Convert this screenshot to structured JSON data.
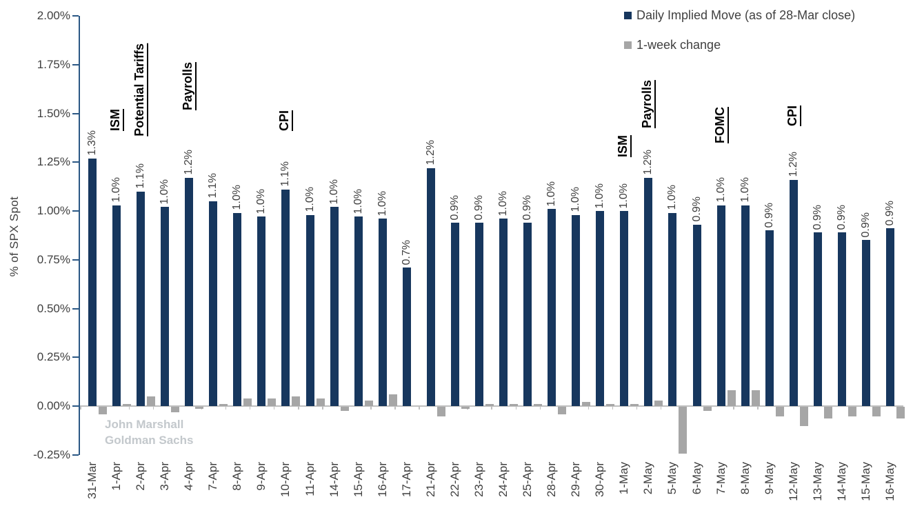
{
  "legend": [
    {
      "label": "Daily Implied Move (as of 28-Mar close)",
      "color": "#17375E"
    },
    {
      "label": "1-week change",
      "color": "#A6A6A6"
    }
  ],
  "watermark": {
    "line1": "John Marshall",
    "line2": "Goldman Sachs",
    "color": "#C3C8CC"
  },
  "chart_data": {
    "type": "bar",
    "title": "",
    "xlabel": "",
    "ylabel": "% of SPX Spot",
    "ylim": [
      -0.25,
      2.0
    ],
    "grid": false,
    "legend_position": "top-right",
    "axis_color": "#2A5784",
    "baseline_color": "#BFBFBF",
    "text_color": "#404040",
    "ytick_values": [
      2.0,
      1.75,
      1.5,
      1.25,
      1.0,
      0.75,
      0.5,
      0.25,
      0.0,
      -0.25
    ],
    "ytick_labels": [
      "2.00%",
      "1.75%",
      "1.50%",
      "1.25%",
      "1.00%",
      "0.75%",
      "0.50%",
      "0.25%",
      "0.00%",
      "-0.25%"
    ],
    "categories": [
      "31-Mar",
      "1-Apr",
      "2-Apr",
      "3-Apr",
      "4-Apr",
      "7-Apr",
      "8-Apr",
      "9-Apr",
      "10-Apr",
      "11-Apr",
      "14-Apr",
      "15-Apr",
      "16-Apr",
      "17-Apr",
      "21-Apr",
      "22-Apr",
      "23-Apr",
      "24-Apr",
      "25-Apr",
      "28-Apr",
      "29-Apr",
      "30-Apr",
      "1-May",
      "2-May",
      "5-May",
      "6-May",
      "7-May",
      "8-May",
      "9-May",
      "12-May",
      "13-May",
      "14-May",
      "15-May",
      "16-May"
    ],
    "series": [
      {
        "name": "Daily Implied Move (as of 28-Mar close)",
        "color": "#17375E",
        "values": [
          1.27,
          1.03,
          1.1,
          1.02,
          1.17,
          1.05,
          0.99,
          0.97,
          1.11,
          0.98,
          1.02,
          0.97,
          0.96,
          0.71,
          1.22,
          0.94,
          0.94,
          0.96,
          0.94,
          1.01,
          0.98,
          1.0,
          1.0,
          1.17,
          0.99,
          0.93,
          1.03,
          1.03,
          0.9,
          1.16,
          0.89,
          0.89,
          0.85,
          0.91
        ],
        "labels": [
          "1.3%",
          "1.0%",
          "1.1%",
          "1.0%",
          "1.2%",
          "1.1%",
          "1.0%",
          "1.0%",
          "1.1%",
          "1.0%",
          "1.0%",
          "1.0%",
          "1.0%",
          "0.7%",
          "1.2%",
          "0.9%",
          "0.9%",
          "1.0%",
          "0.9%",
          "1.0%",
          "1.0%",
          "1.0%",
          "1.0%",
          "1.2%",
          "1.0%",
          "0.9%",
          "1.0%",
          "1.0%",
          "0.9%",
          "1.2%",
          "0.9%",
          "0.9%",
          "0.9%",
          "0.9%"
        ]
      },
      {
        "name": "1-week change",
        "color": "#A6A6A6",
        "values": [
          -0.04,
          0.01,
          0.05,
          -0.03,
          -0.01,
          0.01,
          0.04,
          0.04,
          0.05,
          0.04,
          -0.02,
          0.03,
          0.06,
          0.0,
          -0.05,
          -0.01,
          0.01,
          0.01,
          0.01,
          -0.04,
          0.02,
          0.01,
          0.01,
          0.03,
          -0.24,
          -0.02,
          0.08,
          0.08,
          -0.05,
          -0.1,
          -0.06,
          -0.05,
          -0.05,
          -0.06
        ]
      }
    ],
    "annotations": [
      {
        "text": "ISM",
        "category": "1-Apr",
        "category_index": 1,
        "bottom_y": 190
      },
      {
        "text": "Potential Tariffs",
        "category": "2-Apr",
        "category_index": 2,
        "bottom_y": 198
      },
      {
        "text": "Payrolls",
        "category": "4-Apr",
        "category_index": 4,
        "bottom_y": 160
      },
      {
        "text": "CPI",
        "category": "10-Apr",
        "category_index": 8,
        "bottom_y": 190
      },
      {
        "text": "ISM",
        "category": "1-May",
        "category_index": 22,
        "bottom_y": 228
      },
      {
        "text": "Payrolls",
        "category": "2-May",
        "category_index": 23,
        "bottom_y": 186
      },
      {
        "text": "FOMC",
        "category": "7-May",
        "category_index": 26,
        "bottom_y": 208
      },
      {
        "text": "CPI",
        "category": "12-May",
        "category_index": 29,
        "bottom_y": 183
      }
    ]
  }
}
